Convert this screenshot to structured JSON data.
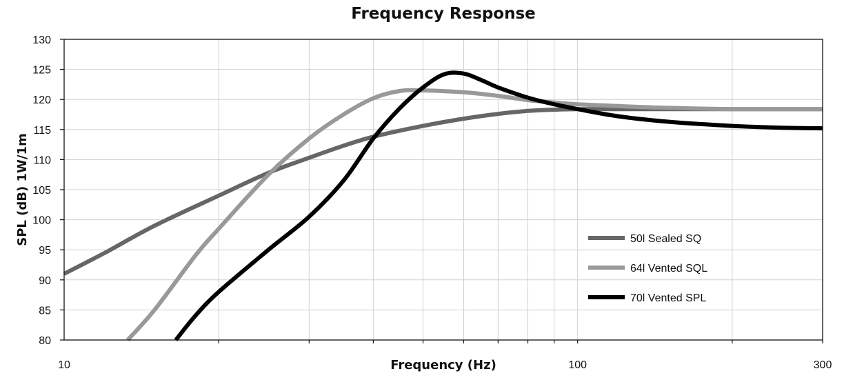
{
  "chart_data": {
    "type": "line",
    "title": "Frequency Response",
    "xlabel": "Frequency (Hz)",
    "ylabel": "SPL (dB) 1W/1m",
    "xscale": "log",
    "xlim": [
      10,
      300
    ],
    "ylim": [
      80,
      130
    ],
    "x_tick_labels": [
      {
        "value": 10,
        "label": "10"
      },
      {
        "value": 100,
        "label": "100"
      },
      {
        "value": 300,
        "label": "300"
      }
    ],
    "x_gridlines": [
      20,
      30,
      40,
      50,
      60,
      70,
      80,
      90,
      100,
      200,
      300
    ],
    "y_ticks": [
      80,
      85,
      90,
      95,
      100,
      105,
      110,
      115,
      120,
      125,
      130
    ],
    "y_tick_labels": [
      "80",
      "85",
      "90",
      "95",
      "100",
      "105",
      "110",
      "115",
      "120",
      "125",
      "130"
    ],
    "grid": true,
    "legend_position": "right-middle",
    "series": [
      {
        "name": "50l Sealed SQ",
        "color": "#666666",
        "x": [
          10,
          12,
          15,
          20,
          25,
          30,
          35,
          40,
          50,
          60,
          70,
          80,
          90,
          100,
          120,
          150,
          200,
          250,
          300
        ],
        "y": [
          91,
          94.5,
          99,
          104,
          107.8,
          110.3,
          112.3,
          113.8,
          115.6,
          116.8,
          117.6,
          118.1,
          118.3,
          118.4,
          118.4,
          118.4,
          118.4,
          118.4,
          118.4
        ]
      },
      {
        "name": "64l Vented SQL",
        "color": "#999999",
        "x": [
          13.3,
          15,
          18,
          20,
          25,
          30,
          35,
          40,
          45,
          50,
          60,
          70,
          80,
          90,
          100,
          120,
          150,
          200,
          250,
          300
        ],
        "y": [
          80,
          85,
          94,
          98.5,
          107.5,
          113.5,
          117.5,
          120.2,
          121.4,
          121.5,
          121.2,
          120.6,
          119.9,
          119.5,
          119.2,
          118.9,
          118.6,
          118.4,
          118.4,
          118.4
        ]
      },
      {
        "name": "70l Vented SPL",
        "color": "#000000",
        "x": [
          16.5,
          18,
          20,
          25,
          30,
          35,
          40,
          45,
          50,
          55,
          60,
          65,
          70,
          80,
          90,
          100,
          120,
          150,
          200,
          250,
          300
        ],
        "y": [
          80,
          84,
          88,
          95,
          100.5,
          106.5,
          113.5,
          118.5,
          122,
          124.2,
          124.3,
          123.2,
          122,
          120.3,
          119.2,
          118.4,
          117.2,
          116.3,
          115.6,
          115.3,
          115.2
        ]
      }
    ]
  }
}
